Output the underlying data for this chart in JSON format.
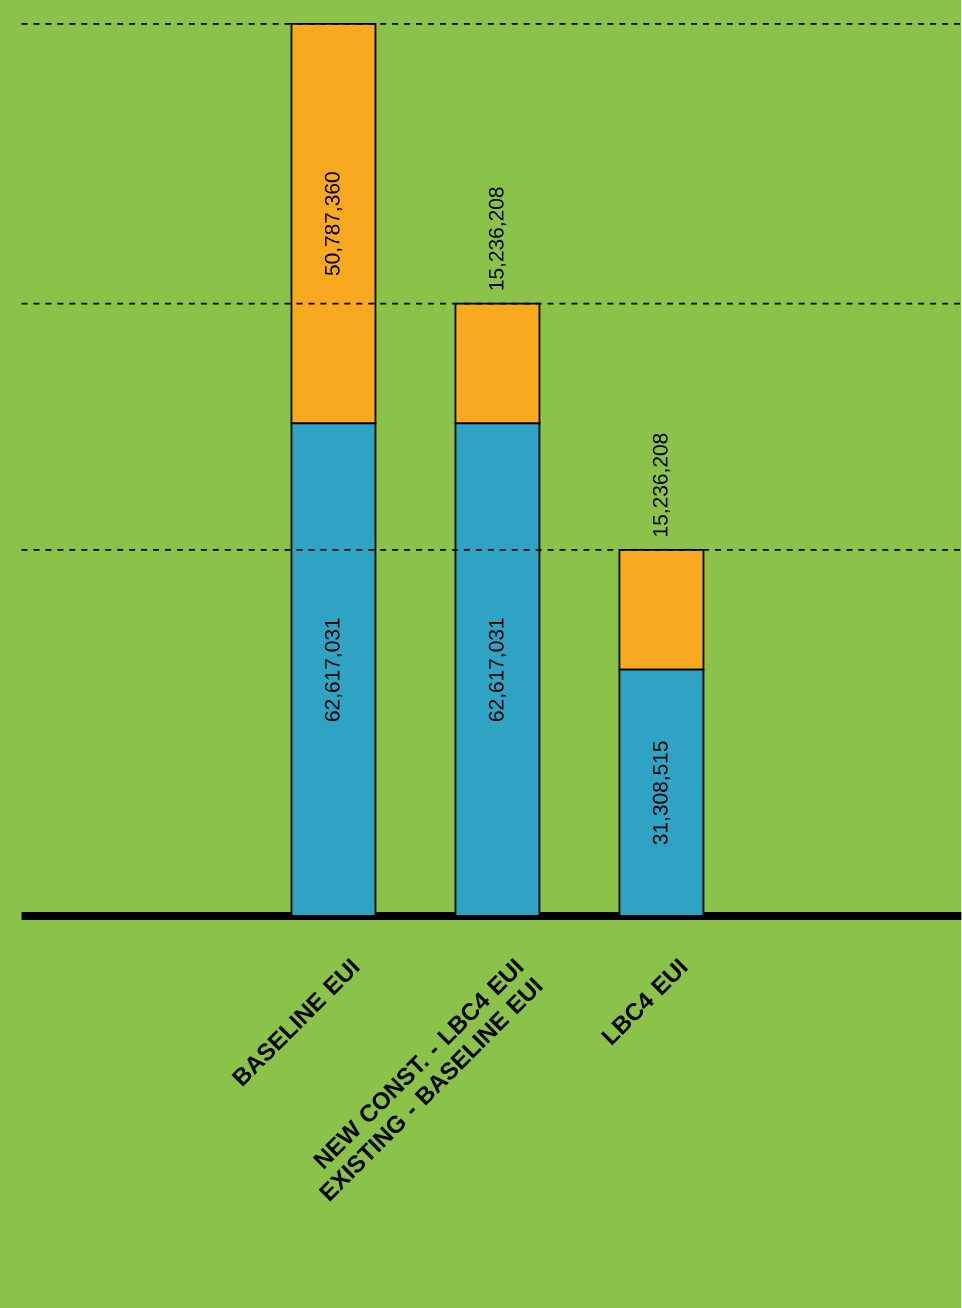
{
  "chart_data": {
    "type": "bar",
    "stacked": true,
    "categories": [
      "BASELINE EUI",
      "NEW CONST. - LBC4 EUI EXISTING - BASELINE EUI",
      "LBC4 EUI"
    ],
    "series": [
      {
        "color": "#2ea3c4",
        "values": [
          62617031,
          62617031,
          31308515
        ],
        "value_labels": [
          "62,617,031",
          "62,617,031",
          "31,308,515"
        ]
      },
      {
        "color": "#f9a91f",
        "values": [
          50787360,
          15236208,
          15236208
        ],
        "value_labels": [
          "50,787,360",
          "15,236,208",
          "15,236,208"
        ]
      }
    ],
    "ref_lines": [
      {
        "axis": "y",
        "value": 113404391,
        "color": "#000000",
        "line_style": "dashed"
      },
      {
        "axis": "y",
        "value": 77853239,
        "color": "#000000",
        "line_style": "dashed"
      },
      {
        "axis": "y",
        "value": 46544723,
        "color": "#000000",
        "line_style": "dashed"
      }
    ]
  }
}
